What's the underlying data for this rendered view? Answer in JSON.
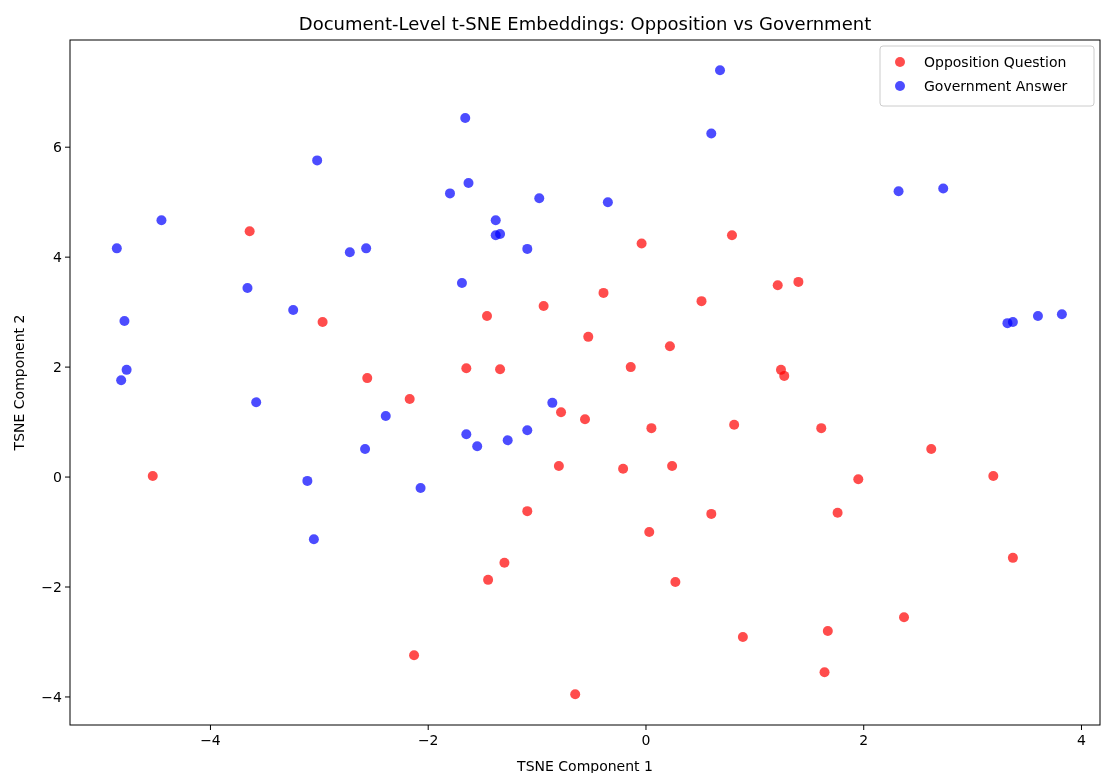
{
  "chart_data": {
    "type": "scatter",
    "title": "Document-Level t-SNE Embeddings: Opposition vs Government",
    "xlabel": "TSNE Component 1",
    "ylabel": "TSNE Component 2",
    "xlim": [
      -5.29,
      4.17
    ],
    "ylim": [
      -4.51,
      7.95
    ],
    "xticks": [
      -4,
      -2,
      0,
      2,
      4
    ],
    "yticks": [
      -4,
      -2,
      0,
      2,
      4,
      6
    ],
    "grid": false,
    "legend": "top right",
    "marker": "circle",
    "series": [
      {
        "name": "Opposition Question",
        "color": "#ff0000",
        "x": [
          -4.53,
          -3.64,
          -2.97,
          -2.56,
          -2.17,
          -2.13,
          -1.65,
          -1.46,
          -1.45,
          -1.34,
          -1.3,
          -1.09,
          -0.94,
          -0.8,
          -0.78,
          -0.65,
          -0.56,
          -0.53,
          -0.39,
          -0.21,
          -0.14,
          -0.04,
          0.03,
          0.05,
          0.22,
          0.24,
          0.27,
          0.51,
          0.6,
          0.79,
          0.81,
          0.89,
          1.21,
          1.24,
          1.27,
          1.4,
          1.61,
          1.64,
          1.67,
          1.76,
          1.95,
          2.37,
          2.62,
          3.19,
          3.37
        ],
        "values": [
          0.02,
          4.47,
          2.82,
          1.8,
          1.42,
          -3.24,
          1.98,
          2.93,
          -1.87,
          1.96,
          -1.56,
          -0.62,
          3.11,
          0.2,
          1.18,
          -3.95,
          1.05,
          2.55,
          3.35,
          0.15,
          2.0,
          4.25,
          -1.0,
          0.89,
          2.38,
          0.2,
          -1.91,
          3.2,
          -0.67,
          4.4,
          0.95,
          -2.91,
          3.49,
          1.95,
          1.84,
          3.55,
          0.89,
          -3.55,
          -2.8,
          -0.65,
          -0.04,
          -2.55,
          0.51,
          0.02,
          -1.47
        ]
      },
      {
        "name": "Government Answer",
        "color": "#0000ff",
        "x": [
          -4.86,
          -4.79,
          -4.82,
          -4.77,
          -4.45,
          -3.66,
          -3.58,
          -3.24,
          -3.11,
          -3.05,
          -3.02,
          -2.72,
          -2.58,
          -2.57,
          -2.39,
          -2.07,
          -1.8,
          -1.69,
          -1.66,
          -1.65,
          -1.63,
          -1.55,
          -1.38,
          -1.38,
          -1.34,
          -1.27,
          -1.09,
          -1.09,
          -0.98,
          -0.86,
          -0.35,
          0.6,
          0.68,
          2.32,
          2.73,
          3.32,
          3.37,
          3.6,
          3.82
        ],
        "values": [
          4.16,
          2.84,
          1.76,
          1.95,
          4.67,
          3.44,
          1.36,
          3.04,
          -0.07,
          -1.13,
          5.76,
          4.09,
          0.51,
          4.16,
          1.11,
          -0.2,
          5.16,
          3.53,
          6.53,
          0.78,
          5.35,
          0.56,
          4.67,
          4.4,
          4.42,
          0.67,
          0.85,
          4.15,
          5.07,
          1.35,
          5.0,
          6.25,
          7.4,
          5.2,
          5.25,
          2.8,
          2.82,
          2.93,
          2.96
        ]
      }
    ]
  }
}
